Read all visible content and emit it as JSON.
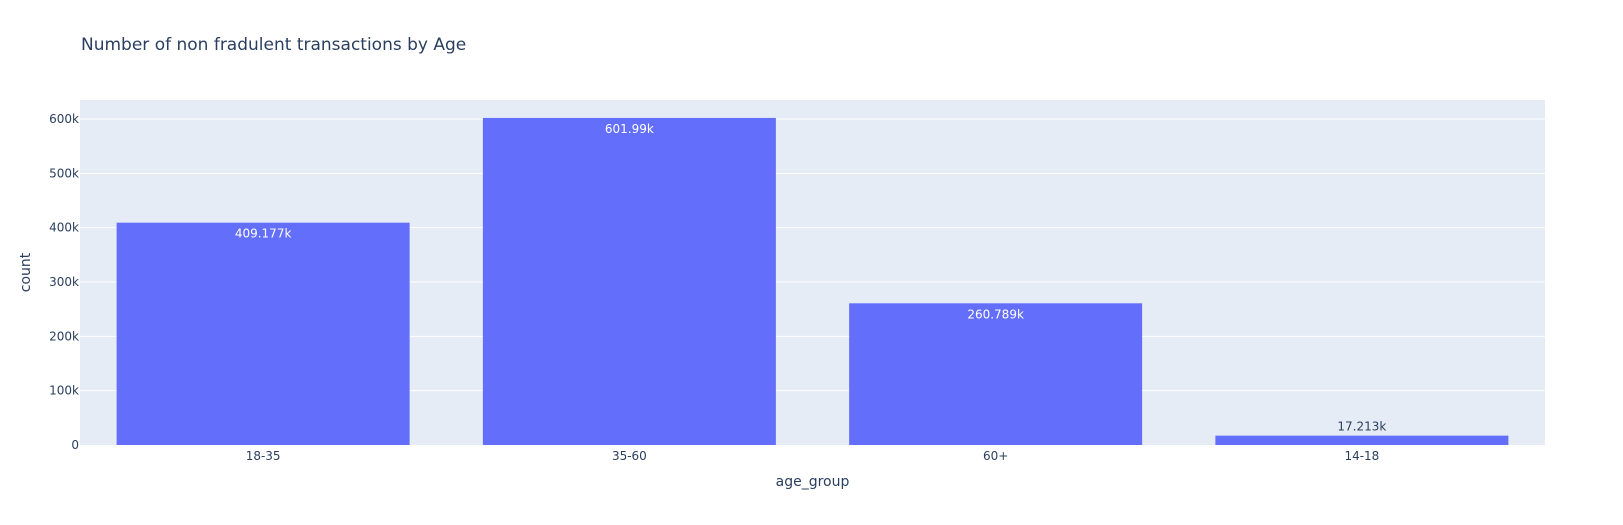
{
  "chart_data": {
    "type": "bar",
    "title": "Number of non fradulent transactions by Age",
    "xlabel": "age_group",
    "ylabel": "count",
    "categories": [
      "18-35",
      "35-60",
      "60+",
      "14-18"
    ],
    "values": [
      409177,
      601990,
      260789,
      17213
    ],
    "value_labels": [
      "409.177k",
      "601.99k",
      "260.789k",
      "17.213k"
    ],
    "ylim": [
      0,
      635000
    ],
    "yticks": [
      0,
      100000,
      200000,
      300000,
      400000,
      500000,
      600000
    ],
    "ytick_labels": [
      "0",
      "100k",
      "200k",
      "300k",
      "400k",
      "500k",
      "600k"
    ],
    "grid": true,
    "colors": {
      "bar": "#636efa",
      "plot_background": "#e5ecf6",
      "text": "#2a3f5f"
    }
  }
}
